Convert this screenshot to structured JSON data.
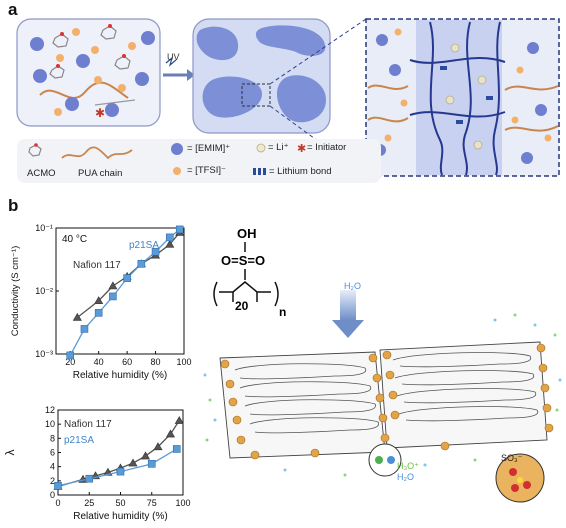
{
  "panel_a": {
    "letter": "a",
    "uv_label": "UV",
    "legend": {
      "acmo": "ACMO",
      "pua": "PUA chain",
      "emim": "= [EMIM]⁺",
      "tfsi": "= [TFSI]⁻",
      "li": "= Li⁺",
      "initiator": "= Initiator",
      "lithium_bond": "= Lithium bond"
    }
  },
  "panel_b": {
    "letter": "b",
    "structure": {
      "oh": "OH",
      "so2": "O=S=O",
      "repeat": "20",
      "n": "n"
    },
    "water_label": "H₂O",
    "h3o_label": "H₃O⁺",
    "h2o_label": "H₂O",
    "so3_label": "SO₃⁻"
  },
  "chart_data": [
    {
      "type": "line",
      "annotation": "40 °C",
      "xlabel": "Relative humidity (%)",
      "ylabel": "Conductivity (S cm⁻¹)",
      "xlim": [
        10,
        100
      ],
      "ylim": [
        0.001,
        0.1
      ],
      "yscale": "log",
      "x_ticks": [
        "20",
        "40",
        "60",
        "80",
        "100"
      ],
      "y_ticks": [
        "10⁻³",
        "10⁻²",
        "10⁻¹"
      ],
      "series": [
        {
          "name": "Nafion 117",
          "color": "#555555",
          "marker": "triangle",
          "x": [
            25,
            40,
            50,
            60,
            70,
            80,
            90,
            97
          ],
          "y": [
            0.0038,
            0.007,
            0.012,
            0.017,
            0.027,
            0.037,
            0.055,
            0.085
          ]
        },
        {
          "name": "p21SA",
          "color": "#5b9bd5",
          "marker": "square",
          "x": [
            20,
            30,
            40,
            50,
            60,
            70,
            80,
            90,
            97
          ],
          "y": [
            0.00095,
            0.0025,
            0.0045,
            0.0082,
            0.016,
            0.027,
            0.042,
            0.071,
            0.095
          ]
        }
      ]
    },
    {
      "type": "line",
      "xlabel": "Relative humidity (%)",
      "ylabel": "λ",
      "xlim": [
        0,
        100
      ],
      "ylim": [
        0,
        12
      ],
      "x_ticks": [
        "0",
        "25",
        "50",
        "75",
        "100"
      ],
      "y_ticks": [
        "0",
        "2",
        "4",
        "6",
        "8",
        "10",
        "12"
      ],
      "series": [
        {
          "name": "Nafion 117",
          "color": "#555555",
          "marker": "triangle",
          "x": [
            0,
            20,
            30,
            40,
            50,
            60,
            70,
            80,
            90,
            97
          ],
          "y": [
            1.2,
            2.2,
            2.7,
            3.2,
            3.8,
            4.5,
            5.5,
            6.8,
            8.6,
            10.5
          ]
        },
        {
          "name": "p21SA",
          "color": "#5b9bd5",
          "marker": "square",
          "x": [
            0,
            25,
            50,
            75,
            95
          ],
          "y": [
            1.3,
            2.3,
            3.3,
            4.4,
            6.5
          ]
        }
      ]
    }
  ]
}
